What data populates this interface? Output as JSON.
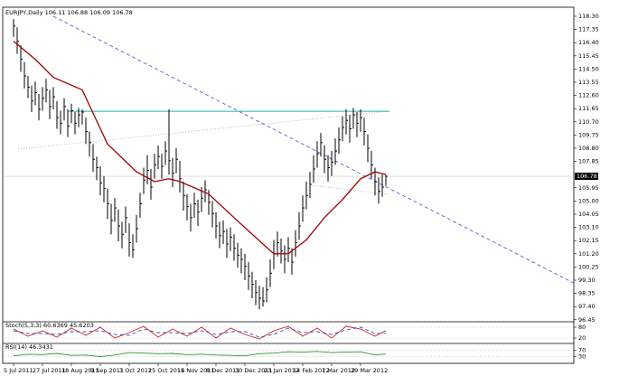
{
  "chart_data": [
    {
      "type": "ohlc",
      "title": "EURJPY,Daily 106.11 106.88 106.09 106.78",
      "color": "#000000",
      "categories": [
        "5 Jul 2011",
        null,
        null,
        null,
        null,
        null,
        null,
        null,
        "27 Jul 2011",
        null,
        null,
        null,
        null,
        null,
        null,
        null,
        "18 Aug 2011",
        null,
        null,
        null,
        null,
        null,
        null,
        null,
        "9 Sep 2011",
        null,
        null,
        null,
        null,
        null,
        null,
        null,
        "3 Oct 2011",
        null,
        null,
        null,
        null,
        null,
        null,
        null,
        "25 Oct 2011",
        null,
        null,
        null,
        null,
        null,
        null,
        null,
        "16 Nov 2011",
        null,
        null,
        null,
        null,
        null,
        null,
        null,
        "8 Dec 2011",
        null,
        null,
        null,
        null,
        null,
        null,
        null,
        "30 Dec 2011",
        null,
        null,
        null,
        null,
        null,
        null,
        null,
        "23 Jan 2012",
        null,
        null,
        null,
        null,
        null,
        null,
        null,
        "14 Feb 2012",
        null,
        null,
        null,
        null,
        null,
        null,
        null,
        "7 Mar 2012",
        null,
        null,
        null,
        null,
        null,
        null,
        null,
        "29 Mar 2012",
        null,
        null,
        null,
        null,
        null,
        null,
        null
      ],
      "high": [
        118.1,
        117.5,
        116.2,
        115.0,
        114.0,
        113.3,
        113.6,
        112.7,
        113.2,
        113.8,
        113.0,
        113.2,
        112.2,
        111.5,
        112.4,
        111.6,
        112.0,
        111.4,
        111.7,
        111.6,
        111.0,
        110.0,
        109.1,
        108.2,
        107.5,
        106.8,
        105.9,
        104.8,
        105.2,
        104.4,
        103.5,
        104.6,
        103.4,
        102.6,
        104.0,
        105.6,
        107.4,
        108.3,
        107.3,
        108.4,
        109.0,
        108.4,
        109.3,
        111.6,
        108.1,
        108.8,
        107.9,
        106.4,
        105.5,
        104.8,
        105.6,
        105.1,
        106.0,
        106.5,
        105.8,
        105.0,
        104.2,
        103.5,
        103.6,
        103.0,
        103.1,
        102.6,
        102.0,
        101.6,
        101.2,
        100.6,
        99.9,
        99.3,
        98.9,
        98.8,
        99.5,
        100.8,
        102.2,
        102.8,
        102.3,
        101.8,
        102.4,
        101.6,
        102.9,
        104.2,
        105.4,
        106.4,
        107.1,
        108.3,
        109.3,
        109.9,
        109.0,
        108.3,
        108.6,
        109.5,
        110.3,
        111.1,
        111.6,
        111.2,
        111.7,
        111.4,
        111.6,
        111.0,
        109.8,
        108.6,
        107.4,
        106.7,
        106.9,
        106.88
      ],
      "low": [
        116.8,
        115.6,
        114.3,
        113.1,
        112.4,
        111.4,
        111.9,
        110.8,
        111.5,
        112.1,
        110.9,
        111.6,
        110.2,
        109.8,
        110.8,
        109.6,
        110.6,
        109.8,
        110.3,
        110.5,
        109.1,
        108.2,
        107.1,
        106.5,
        105.4,
        104.9,
        103.7,
        102.6,
        103.5,
        102.1,
        101.6,
        102.7,
        101.0,
        100.9,
        102.0,
        103.8,
        105.5,
        106.2,
        105.1,
        106.6,
        107.3,
        106.6,
        107.6,
        106.9,
        106.0,
        107.0,
        105.6,
        104.3,
        103.6,
        102.8,
        103.8,
        103.2,
        104.2,
        104.9,
        104.0,
        103.1,
        102.3,
        101.6,
        101.9,
        100.9,
        101.4,
        100.7,
        100.2,
        99.8,
        99.3,
        98.6,
        98.0,
        97.5,
        97.2,
        97.4,
        97.7,
        98.8,
        100.1,
        101.0,
        100.5,
        99.8,
        100.6,
        99.7,
        101.0,
        102.2,
        103.5,
        104.4,
        105.2,
        106.3,
        107.4,
        108.2,
        107.0,
        106.4,
        106.8,
        107.6,
        108.4,
        109.3,
        109.8,
        109.2,
        110.2,
        109.6,
        110.0,
        109.0,
        107.8,
        106.6,
        105.4,
        104.8,
        105.3,
        106.09
      ],
      "close": [
        117.6,
        116.5,
        115.2,
        114.0,
        113.2,
        112.2,
        112.8,
        111.6,
        112.4,
        113.0,
        111.8,
        112.5,
        111.0,
        110.6,
        111.8,
        110.4,
        111.5,
        110.6,
        111.2,
        111.4,
        110.0,
        109.2,
        108.0,
        107.4,
        106.3,
        105.9,
        104.8,
        103.6,
        104.5,
        103.2,
        102.6,
        103.8,
        102.0,
        101.5,
        103.0,
        104.8,
        106.5,
        107.2,
        106.0,
        107.6,
        108.2,
        107.5,
        108.6,
        107.9,
        107.0,
        108.0,
        106.6,
        105.4,
        104.6,
        103.8,
        104.8,
        104.2,
        105.2,
        105.8,
        104.9,
        104.1,
        103.2,
        102.5,
        102.8,
        101.9,
        102.4,
        101.6,
        101.1,
        100.8,
        100.3,
        99.6,
        99.0,
        98.4,
        98.0,
        97.8,
        98.6,
        99.8,
        101.2,
        102.0,
        101.4,
        100.8,
        101.6,
        100.6,
        102.0,
        103.2,
        104.5,
        105.4,
        106.2,
        107.3,
        108.4,
        109.2,
        108.0,
        107.4,
        107.8,
        108.6,
        109.4,
        110.3,
        110.8,
        110.2,
        111.2,
        110.6,
        111.0,
        110.0,
        108.8,
        107.6,
        106.4,
        105.7,
        106.0,
        106.78
      ],
      "ma": {
        "color": "#a00000",
        "x": [
          0,
          6,
          11,
          19,
          26,
          34,
          39,
          43,
          46,
          54,
          61,
          69,
          72,
          76,
          81,
          86,
          91,
          96,
          100,
          103
        ],
        "values": [
          116.5,
          115.2,
          113.9,
          113.0,
          109.1,
          107.1,
          106.4,
          106.6,
          106.4,
          105.5,
          103.8,
          101.9,
          101.2,
          101.2,
          102.2,
          103.8,
          105.1,
          106.6,
          107.1,
          106.9
        ]
      },
      "lines": [
        {
          "color": "#20b2aa",
          "style": "solid",
          "x": [
            15,
            104
          ],
          "values": [
            111.46,
            111.46
          ]
        },
        {
          "color": "#6a6ad8",
          "style": "dashed",
          "x": [
            11,
            155
          ],
          "values": [
            118.3,
            99.09
          ]
        }
      ],
      "ylim": [
        96.37,
        118.82
      ],
      "yticks": [
        {
          "value": 118.3,
          "label": "118.30"
        },
        {
          "value": 117.35,
          "label": "117.35"
        },
        {
          "value": 116.4,
          "label": "116.40"
        },
        {
          "value": 115.45,
          "label": "115.45"
        },
        {
          "value": 114.5,
          "label": "114.50"
        },
        {
          "value": 113.55,
          "label": "113.55"
        },
        {
          "value": 112.6,
          "label": "112.60"
        },
        {
          "value": 111.65,
          "label": "111.65"
        },
        {
          "value": 110.7,
          "label": "110.70"
        },
        {
          "value": 109.75,
          "label": "109.75"
        },
        {
          "value": 108.8,
          "label": "108.80"
        },
        {
          "value": 107.85,
          "label": "107.85"
        },
        {
          "value": 105.95,
          "label": "105.95"
        },
        {
          "value": 105,
          "label": "105.00"
        },
        {
          "value": 104.05,
          "label": "104.05"
        },
        {
          "value": 103.1,
          "label": "103.10"
        },
        {
          "value": 102.15,
          "label": "102.15"
        },
        {
          "value": 101.2,
          "label": "101.20"
        },
        {
          "value": 100.25,
          "label": "100.25"
        },
        {
          "value": 99.3,
          "label": "99.30"
        },
        {
          "value": 98.35,
          "label": "98.35"
        },
        {
          "value": 97.4,
          "label": "97.40"
        },
        {
          "value": 96.45,
          "label": "96.45"
        }
      ]
    },
    {
      "type": "line",
      "title": "Stoch(5,3,3) 60.6369 45.6203",
      "ylim": [
        0,
        100
      ],
      "yticks": [
        80,
        20
      ],
      "x": [
        0,
        4,
        8,
        12,
        16,
        20,
        24,
        28,
        32,
        36,
        40,
        44,
        48,
        52,
        56,
        60,
        64,
        68,
        72,
        76,
        80,
        84,
        88,
        92,
        96,
        100,
        103
      ],
      "series": [
        {
          "color": "#d02020",
          "style": "solid",
          "values": [
            70,
            30,
            60,
            25,
            75,
            35,
            80,
            20,
            50,
            85,
            25,
            70,
            30,
            80,
            20,
            75,
            40,
            15,
            60,
            85,
            30,
            75,
            20,
            85,
            70,
            30,
            61
          ]
        },
        {
          "color": "#3050c0",
          "style": "dashed",
          "values": [
            60,
            45,
            45,
            40,
            55,
            55,
            60,
            40,
            35,
            70,
            50,
            50,
            45,
            60,
            40,
            55,
            55,
            25,
            40,
            75,
            50,
            55,
            40,
            65,
            80,
            45,
            46
          ]
        }
      ]
    },
    {
      "type": "line",
      "title": "RSI(14) 46.3431",
      "ylim": [
        0,
        100
      ],
      "yticks": [
        70,
        30
      ],
      "x": [
        0,
        4,
        8,
        12,
        16,
        20,
        24,
        28,
        32,
        36,
        40,
        44,
        48,
        52,
        56,
        60,
        64,
        68,
        72,
        76,
        80,
        84,
        88,
        92,
        96,
        100,
        103
      ],
      "series": [
        {
          "color": "#2a9a2a",
          "style": "solid",
          "values": [
            35,
            45,
            42,
            50,
            38,
            40,
            30,
            40,
            55,
            52,
            48,
            50,
            42,
            45,
            40,
            38,
            35,
            48,
            52,
            60,
            58,
            62,
            55,
            58,
            60,
            40,
            46
          ]
        }
      ]
    }
  ]
}
